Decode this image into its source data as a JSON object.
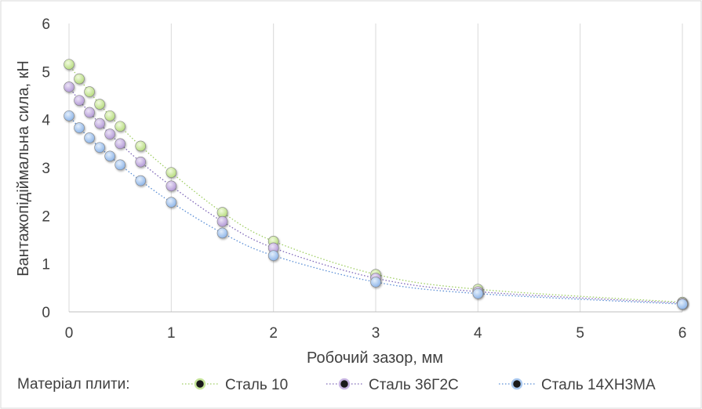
{
  "chart_data": {
    "type": "scatter",
    "xlabel": "Робочий зазор, мм",
    "ylabel": "Вантажопідіймальна сила, кН",
    "xlim": [
      0,
      6
    ],
    "ylim": [
      0,
      6
    ],
    "x_ticks": [
      "0",
      "1",
      "2",
      "3",
      "4",
      "5",
      "6"
    ],
    "y_ticks": [
      "0",
      "1",
      "2",
      "3",
      "4",
      "5",
      "6"
    ],
    "grid": "vertical",
    "trendlines": true,
    "legend": {
      "position": "bottom",
      "title": "Матеріал плити:"
    },
    "series": [
      {
        "name": "Сталь 10",
        "color": "#c6e59a",
        "line_color": "#9fce63",
        "x": [
          0,
          0.1,
          0.2,
          0.3,
          0.4,
          0.5,
          0.7,
          1,
          1.5,
          2,
          3,
          4,
          6
        ],
        "y": [
          5.15,
          4.85,
          4.58,
          4.32,
          4.08,
          3.86,
          3.45,
          2.9,
          2.07,
          1.47,
          0.78,
          0.47,
          0.2
        ]
      },
      {
        "name": "Сталь 36Г2С",
        "color": "#c8b5e2",
        "line_color": "#7e67b8",
        "x": [
          0,
          0.1,
          0.2,
          0.3,
          0.4,
          0.5,
          0.7,
          1,
          1.5,
          2,
          3,
          4,
          6
        ],
        "y": [
          4.68,
          4.4,
          4.15,
          3.92,
          3.7,
          3.5,
          3.12,
          2.62,
          1.88,
          1.33,
          0.7,
          0.42,
          0.18
        ]
      },
      {
        "name": "Сталь 14ХН3МА",
        "color": "#a9c8ef",
        "line_color": "#5b8fd6",
        "x": [
          0,
          0.1,
          0.2,
          0.3,
          0.4,
          0.5,
          0.7,
          1,
          1.5,
          2,
          3,
          4,
          6
        ],
        "y": [
          4.08,
          3.83,
          3.62,
          3.42,
          3.24,
          3.06,
          2.73,
          2.28,
          1.64,
          1.17,
          0.62,
          0.38,
          0.16
        ]
      }
    ]
  }
}
